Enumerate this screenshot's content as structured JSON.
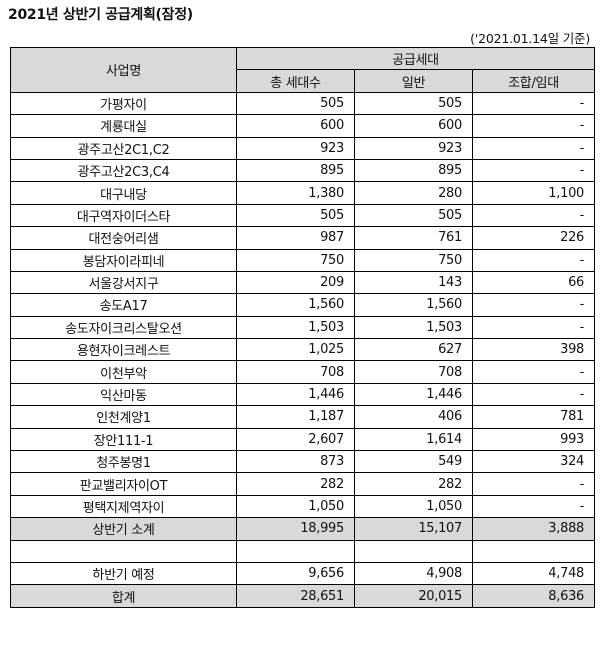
{
  "title": "2021년 상반기 공급계획(잠정)",
  "note": "('2021.01.14일 기준)",
  "headers": {
    "name": "사업명",
    "supply": "공급세대",
    "total": "총 세대수",
    "general": "일반",
    "union": "조합/임대"
  },
  "rows": [
    {
      "name": "가평자이",
      "total": "505",
      "general": "505",
      "union": "-"
    },
    {
      "name": "계룡대실",
      "total": "600",
      "general": "600",
      "union": "-"
    },
    {
      "name": "광주고산2C1,C2",
      "total": "923",
      "general": "923",
      "union": "-"
    },
    {
      "name": "광주고산2C3,C4",
      "total": "895",
      "general": "895",
      "union": "-"
    },
    {
      "name": "대구내당",
      "total": "1,380",
      "general": "280",
      "union": "1,100"
    },
    {
      "name": "대구역자이더스타",
      "total": "505",
      "general": "505",
      "union": "-"
    },
    {
      "name": "대전숭어리샘",
      "total": "987",
      "general": "761",
      "union": "226"
    },
    {
      "name": "봉담자이라피네",
      "total": "750",
      "general": "750",
      "union": "-"
    },
    {
      "name": "서울강서지구",
      "total": "209",
      "general": "143",
      "union": "66"
    },
    {
      "name": "송도A17",
      "total": "1,560",
      "general": "1,560",
      "union": "-"
    },
    {
      "name": "송도자이크리스탈오션",
      "total": "1,503",
      "general": "1,503",
      "union": "-"
    },
    {
      "name": "용현자이크레스트",
      "total": "1,025",
      "general": "627",
      "union": "398"
    },
    {
      "name": "이천부악",
      "total": "708",
      "general": "708",
      "union": "-"
    },
    {
      "name": "익산마동",
      "total": "1,446",
      "general": "1,446",
      "union": "-"
    },
    {
      "name": "인천계양1",
      "total": "1,187",
      "general": "406",
      "union": "781"
    },
    {
      "name": "장안111-1",
      "total": "2,607",
      "general": "1,614",
      "union": "993"
    },
    {
      "name": "청주봉명1",
      "total": "873",
      "general": "549",
      "union": "324"
    },
    {
      "name": "판교밸리자이OT",
      "total": "282",
      "general": "282",
      "union": "-"
    },
    {
      "name": "평택지제역자이",
      "total": "1,050",
      "general": "1,050",
      "union": "-"
    }
  ],
  "subtotal": {
    "name": "상반기 소계",
    "total": "18,995",
    "general": "15,107",
    "union": "3,888"
  },
  "second_half": {
    "name": "하반기 예정",
    "total": "9,656",
    "general": "4,908",
    "union": "4,748"
  },
  "grand_total": {
    "name": "합계",
    "total": "28,651",
    "general": "20,015",
    "union": "8,636"
  }
}
